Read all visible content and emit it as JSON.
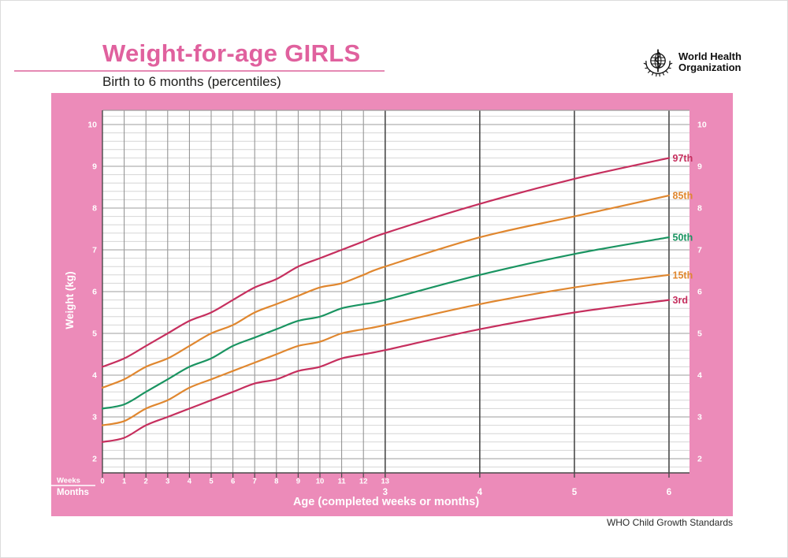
{
  "header": {
    "title": "Weight-for-age GIRLS",
    "subtitle": "Birth to 6 months (percentiles)",
    "logo_line1": "World Health",
    "logo_line2": "Organization"
  },
  "footer": {
    "credit": "WHO Child Growth Standards"
  },
  "chart": {
    "y_axis_label": "Weight (kg)",
    "x_axis_label": "Age (completed weeks or months)",
    "weeks_row_label": "Weeks",
    "months_row_label": "Months"
  },
  "colors": {
    "panel_pink": "#ec8bb9",
    "title_pink": "#e0619e",
    "red_percentile": "#c62f5e",
    "orange_percentile": "#e0872f",
    "green_percentile": "#1a9461",
    "grid_minor": "#d6d6d6",
    "grid_major": "#9e9e9e",
    "grid_week": "#8c8c8c",
    "grid_month": "#4a4a4a",
    "axis_text": "#ffffff",
    "plot_bg": "#ffffff"
  },
  "chart_data": {
    "type": "line",
    "title": "Weight-for-age GIRLS",
    "subtitle": "Birth to 6 months (percentiles)",
    "xlabel": "Age (completed weeks or months)",
    "ylabel": "Weight (kg)",
    "ylim": [
      1.66,
      10.35
    ],
    "y_ticks": [
      2,
      3,
      4,
      5,
      6,
      7,
      8,
      9,
      10
    ],
    "y_minor_step_kg": 0.2,
    "x_week_ticks": [
      0,
      1,
      2,
      3,
      4,
      5,
      6,
      7,
      8,
      9,
      10,
      11,
      12,
      13
    ],
    "x_month_ticks": [
      {
        "label": "3",
        "week": 13.0
      },
      {
        "label": "4",
        "week": 17.35
      },
      {
        "label": "5",
        "week": 21.7
      },
      {
        "label": "6",
        "week": 26.05
      }
    ],
    "xlim_weeks": [
      0,
      26.05
    ],
    "grid": {
      "horizontal_minor_every_kg": 0.2,
      "horizontal_major_every_kg": 1,
      "vertical_weekly_until_week": 13,
      "vertical_monthly_at_months": [
        3,
        4,
        5,
        6
      ]
    },
    "legend_position": "curve-end-labels-right",
    "x_weeks": [
      0,
      1,
      2,
      3,
      4,
      5,
      6,
      7,
      8,
      9,
      10,
      11,
      12,
      13,
      17.35,
      21.7,
      26.05
    ],
    "series": [
      {
        "name": "97th",
        "color": "#c62f5e",
        "values": [
          4.2,
          4.4,
          4.7,
          5.0,
          5.3,
          5.5,
          5.8,
          6.1,
          6.3,
          6.6,
          6.8,
          7.0,
          7.2,
          7.4,
          8.1,
          8.7,
          9.2
        ]
      },
      {
        "name": "85th",
        "color": "#e0872f",
        "values": [
          3.7,
          3.9,
          4.2,
          4.4,
          4.7,
          5.0,
          5.2,
          5.5,
          5.7,
          5.9,
          6.1,
          6.2,
          6.4,
          6.6,
          7.3,
          7.8,
          8.3
        ]
      },
      {
        "name": "50th",
        "color": "#1a9461",
        "values": [
          3.2,
          3.3,
          3.6,
          3.9,
          4.2,
          4.4,
          4.7,
          4.9,
          5.1,
          5.3,
          5.4,
          5.6,
          5.7,
          5.8,
          6.4,
          6.9,
          7.3
        ]
      },
      {
        "name": "15th",
        "color": "#e0872f",
        "values": [
          2.8,
          2.9,
          3.2,
          3.4,
          3.7,
          3.9,
          4.1,
          4.3,
          4.5,
          4.7,
          4.8,
          5.0,
          5.1,
          5.2,
          5.7,
          6.1,
          6.4
        ]
      },
      {
        "name": "3rd",
        "color": "#c62f5e",
        "values": [
          2.4,
          2.5,
          2.8,
          3.0,
          3.2,
          3.4,
          3.6,
          3.8,
          3.9,
          4.1,
          4.2,
          4.4,
          4.5,
          4.6,
          5.1,
          5.5,
          5.8
        ]
      }
    ]
  }
}
